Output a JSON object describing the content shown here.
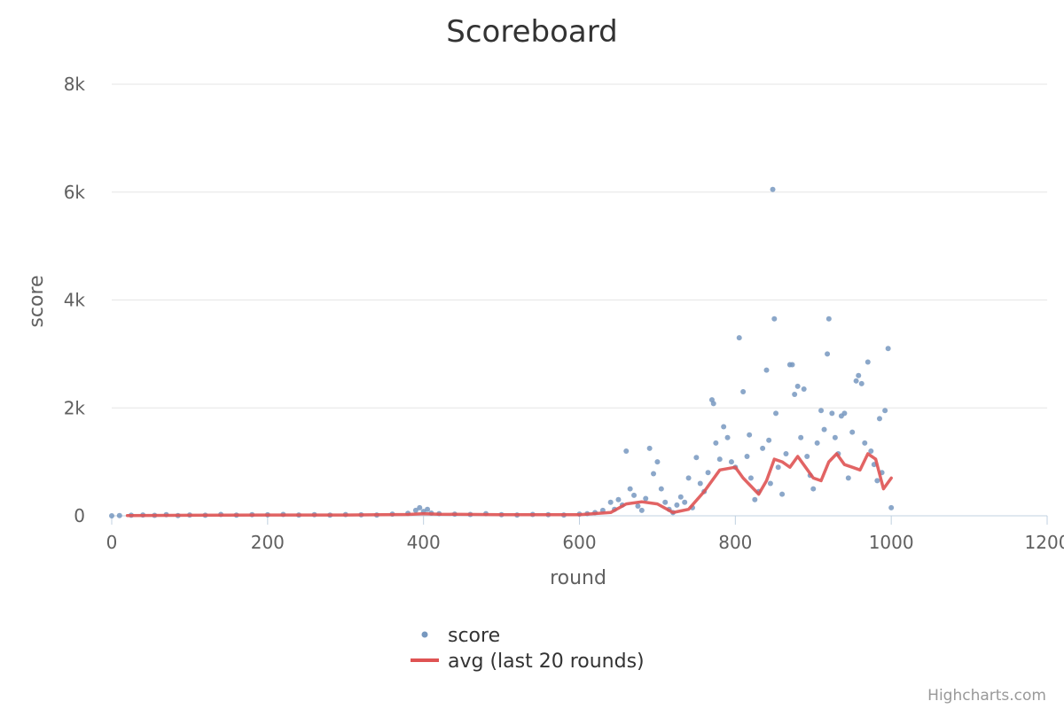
{
  "colors": {
    "score": "#7798BF",
    "avg": "#DF5353",
    "grid": "#E6E6E6",
    "axis": "#C0D0E0",
    "text": "#606060",
    "credits": "#999999"
  },
  "chart_data": {
    "type": "scatter",
    "title": "Scoreboard",
    "xlabel": "round",
    "ylabel": "score",
    "xlim": [
      0,
      1200
    ],
    "ylim": [
      0,
      8000
    ],
    "x_ticks": [
      0,
      200,
      400,
      600,
      800,
      1000,
      1200
    ],
    "x_tick_labels": [
      "0",
      "200",
      "400",
      "600",
      "800",
      "1000",
      "1200"
    ],
    "y_ticks": [
      0,
      2000,
      4000,
      6000,
      8000
    ],
    "y_tick_labels": [
      "0",
      "2k",
      "4k",
      "6k",
      "8k"
    ],
    "grid": true,
    "legend_position": "bottom-center",
    "credits": "Highcharts.com",
    "series": [
      {
        "name": "score",
        "type": "scatter",
        "points": [
          [
            0,
            0
          ],
          [
            10,
            5
          ],
          [
            25,
            10
          ],
          [
            40,
            15
          ],
          [
            55,
            8
          ],
          [
            70,
            20
          ],
          [
            85,
            5
          ],
          [
            100,
            15
          ],
          [
            120,
            10
          ],
          [
            140,
            25
          ],
          [
            160,
            12
          ],
          [
            180,
            20
          ],
          [
            200,
            18
          ],
          [
            220,
            25
          ],
          [
            240,
            15
          ],
          [
            260,
            20
          ],
          [
            280,
            12
          ],
          [
            300,
            22
          ],
          [
            320,
            18
          ],
          [
            340,
            15
          ],
          [
            360,
            30
          ],
          [
            380,
            45
          ],
          [
            390,
            100
          ],
          [
            395,
            150
          ],
          [
            400,
            80
          ],
          [
            405,
            120
          ],
          [
            410,
            50
          ],
          [
            420,
            40
          ],
          [
            440,
            30
          ],
          [
            460,
            25
          ],
          [
            480,
            40
          ],
          [
            500,
            20
          ],
          [
            520,
            15
          ],
          [
            540,
            25
          ],
          [
            560,
            20
          ],
          [
            580,
            15
          ],
          [
            600,
            30
          ],
          [
            610,
            40
          ],
          [
            620,
            60
          ],
          [
            630,
            100
          ],
          [
            640,
            250
          ],
          [
            645,
            120
          ],
          [
            650,
            300
          ],
          [
            655,
            200
          ],
          [
            660,
            1200
          ],
          [
            665,
            500
          ],
          [
            670,
            380
          ],
          [
            675,
            180
          ],
          [
            680,
            100
          ],
          [
            685,
            320
          ],
          [
            690,
            1250
          ],
          [
            695,
            780
          ],
          [
            700,
            1000
          ],
          [
            705,
            500
          ],
          [
            710,
            250
          ],
          [
            715,
            120
          ],
          [
            720,
            60
          ],
          [
            725,
            200
          ],
          [
            730,
            350
          ],
          [
            735,
            250
          ],
          [
            740,
            700
          ],
          [
            745,
            150
          ],
          [
            750,
            1080
          ],
          [
            755,
            600
          ],
          [
            760,
            450
          ],
          [
            765,
            800
          ],
          [
            770,
            2150
          ],
          [
            772,
            2080
          ],
          [
            775,
            1350
          ],
          [
            780,
            1050
          ],
          [
            785,
            1650
          ],
          [
            790,
            1450
          ],
          [
            795,
            1000
          ],
          [
            800,
            900
          ],
          [
            805,
            3300
          ],
          [
            810,
            2300
          ],
          [
            815,
            1100
          ],
          [
            818,
            1500
          ],
          [
            820,
            700
          ],
          [
            825,
            300
          ],
          [
            830,
            450
          ],
          [
            835,
            1250
          ],
          [
            840,
            2700
          ],
          [
            843,
            1400
          ],
          [
            845,
            600
          ],
          [
            848,
            6050
          ],
          [
            850,
            3650
          ],
          [
            852,
            1900
          ],
          [
            855,
            900
          ],
          [
            860,
            400
          ],
          [
            865,
            1150
          ],
          [
            870,
            2800
          ],
          [
            873,
            2800
          ],
          [
            876,
            2250
          ],
          [
            880,
            2400
          ],
          [
            884,
            1450
          ],
          [
            888,
            2350
          ],
          [
            892,
            1100
          ],
          [
            896,
            750
          ],
          [
            900,
            500
          ],
          [
            905,
            1350
          ],
          [
            910,
            1950
          ],
          [
            914,
            1600
          ],
          [
            918,
            3000
          ],
          [
            920,
            3650
          ],
          [
            924,
            1900
          ],
          [
            928,
            1450
          ],
          [
            932,
            1150
          ],
          [
            936,
            1850
          ],
          [
            940,
            1900
          ],
          [
            945,
            700
          ],
          [
            950,
            1550
          ],
          [
            955,
            2500
          ],
          [
            958,
            2600
          ],
          [
            962,
            2450
          ],
          [
            966,
            1350
          ],
          [
            970,
            2850
          ],
          [
            974,
            1200
          ],
          [
            978,
            950
          ],
          [
            982,
            650
          ],
          [
            985,
            1800
          ],
          [
            988,
            800
          ],
          [
            992,
            1950
          ],
          [
            996,
            3100
          ],
          [
            1000,
            150
          ]
        ]
      },
      {
        "name": "avg (last 20 rounds)",
        "type": "line",
        "points": [
          [
            20,
            5
          ],
          [
            100,
            10
          ],
          [
            200,
            15
          ],
          [
            300,
            15
          ],
          [
            380,
            25
          ],
          [
            400,
            40
          ],
          [
            420,
            30
          ],
          [
            500,
            20
          ],
          [
            600,
            20
          ],
          [
            640,
            60
          ],
          [
            660,
            220
          ],
          [
            680,
            260
          ],
          [
            700,
            220
          ],
          [
            720,
            60
          ],
          [
            740,
            120
          ],
          [
            760,
            450
          ],
          [
            780,
            850
          ],
          [
            800,
            900
          ],
          [
            810,
            700
          ],
          [
            820,
            550
          ],
          [
            830,
            400
          ],
          [
            840,
            650
          ],
          [
            850,
            1050
          ],
          [
            860,
            1000
          ],
          [
            870,
            900
          ],
          [
            880,
            1100
          ],
          [
            890,
            900
          ],
          [
            900,
            700
          ],
          [
            910,
            650
          ],
          [
            920,
            1000
          ],
          [
            930,
            1150
          ],
          [
            940,
            950
          ],
          [
            950,
            900
          ],
          [
            960,
            850
          ],
          [
            970,
            1150
          ],
          [
            980,
            1050
          ],
          [
            990,
            500
          ],
          [
            1000,
            700
          ]
        ]
      }
    ]
  }
}
